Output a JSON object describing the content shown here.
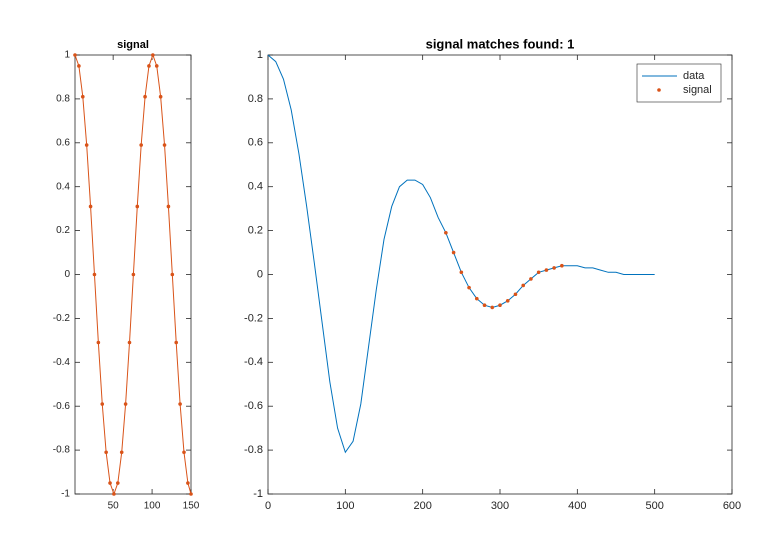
{
  "chart_data": [
    {
      "type": "line",
      "title": "signal",
      "series": [
        {
          "color": "#D95319",
          "style": "line+markers",
          "x": [
            1,
            6,
            11,
            16,
            21,
            26,
            31,
            36,
            41,
            46,
            51,
            56,
            61,
            66,
            71,
            76,
            81,
            86,
            91,
            96,
            101,
            106,
            111,
            116,
            121,
            126,
            131,
            136,
            141,
            146,
            150
          ],
          "values": [
            1,
            0.95,
            0.81,
            0.59,
            0.31,
            0,
            -0.31,
            -0.59,
            -0.81,
            -0.95,
            -1,
            -0.95,
            -0.81,
            -0.59,
            -0.31,
            0,
            0.31,
            0.59,
            0.81,
            0.95,
            1,
            0.95,
            0.81,
            0.59,
            0.31,
            0,
            -0.31,
            -0.59,
            -0.81,
            -0.95,
            -1
          ]
        }
      ],
      "xlim": [
        1,
        150
      ],
      "xticks": [
        50,
        100,
        150
      ],
      "ylim": [
        -1,
        1
      ],
      "yticks": [
        -1,
        -0.8,
        -0.6,
        -0.4,
        -0.2,
        0,
        0.2,
        0.4,
        0.6,
        0.8,
        1
      ]
    },
    {
      "type": "line",
      "title": "signal matches found: 1",
      "legend": "northeast",
      "series": [
        {
          "name": "data",
          "color": "#0072BD",
          "style": "line",
          "x": [
            0,
            10,
            20,
            30,
            40,
            50,
            60,
            70,
            80,
            90,
            100,
            110,
            120,
            130,
            140,
            150,
            160,
            170,
            180,
            190,
            200,
            210,
            220,
            230,
            240,
            250,
            260,
            270,
            280,
            290,
            300,
            310,
            320,
            330,
            340,
            350,
            360,
            370,
            380,
            390,
            400,
            410,
            420,
            430,
            440,
            450,
            460,
            470,
            480,
            490,
            500
          ],
          "values": [
            1,
            0.97,
            0.89,
            0.75,
            0.55,
            0.31,
            0.05,
            -0.22,
            -0.49,
            -0.7,
            -0.81,
            -0.76,
            -0.59,
            -0.33,
            -0.07,
            0.16,
            0.31,
            0.4,
            0.43,
            0.43,
            0.41,
            0.35,
            0.26,
            0.19,
            0.1,
            0.01,
            -0.06,
            -0.11,
            -0.14,
            -0.15,
            -0.14,
            -0.12,
            -0.09,
            -0.05,
            -0.02,
            0.01,
            0.02,
            0.03,
            0.04,
            0.04,
            0.04,
            0.03,
            0.03,
            0.02,
            0.01,
            0.01,
            0,
            0,
            0,
            0,
            0
          ]
        },
        {
          "name": "signal",
          "color": "#D95319",
          "style": "markers",
          "x": [
            230,
            240,
            250,
            260,
            270,
            280,
            290,
            300,
            310,
            320,
            330,
            340,
            350,
            360,
            370,
            380
          ],
          "values": [
            0.19,
            0.1,
            0.01,
            -0.06,
            -0.11,
            -0.14,
            -0.15,
            -0.14,
            -0.12,
            -0.09,
            -0.05,
            -0.02,
            0.01,
            0.02,
            0.03,
            0.04
          ]
        }
      ],
      "xlim": [
        0,
        600
      ],
      "xticks": [
        0,
        100,
        200,
        300,
        400,
        500,
        600
      ],
      "ylim": [
        -1,
        1
      ],
      "yticks": [
        -1,
        -0.8,
        -0.6,
        -0.4,
        -0.2,
        0,
        0.2,
        0.4,
        0.6,
        0.8,
        1
      ]
    }
  ]
}
